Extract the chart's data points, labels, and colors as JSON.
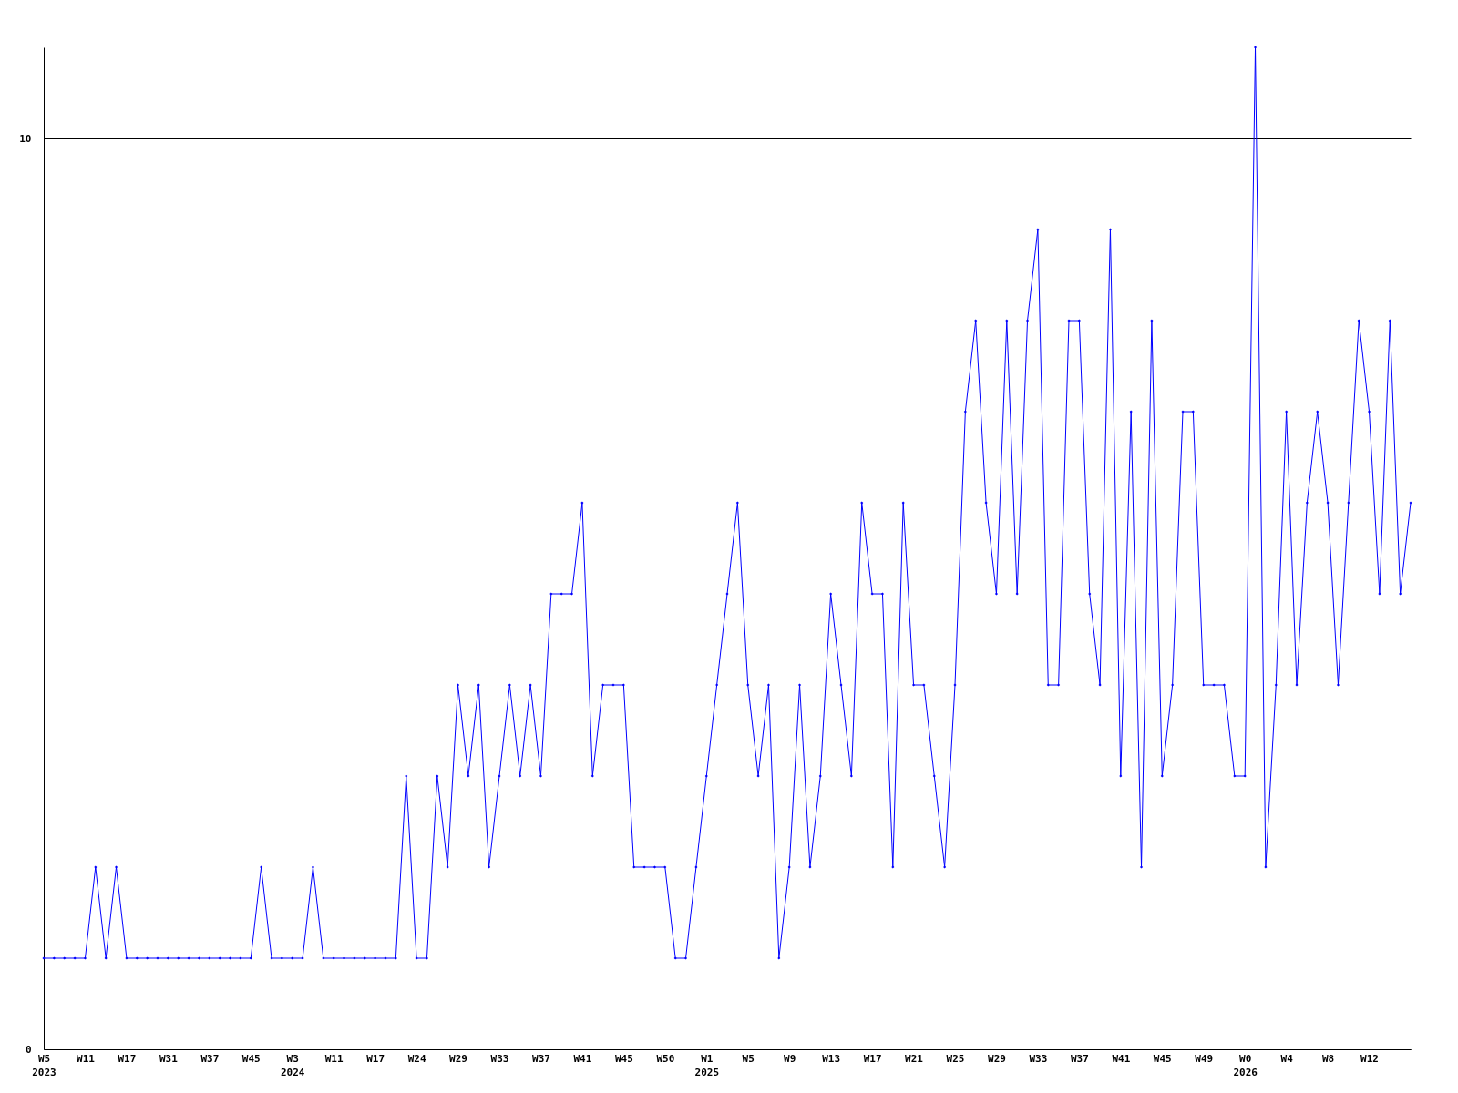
{
  "chart_data": {
    "type": "line",
    "categories": [
      "W5\n2023",
      null,
      null,
      null,
      "W11",
      null,
      null,
      null,
      "W17",
      null,
      null,
      null,
      "W31",
      null,
      null,
      null,
      "W37",
      null,
      null,
      null,
      "W45",
      null,
      null,
      null,
      "W3\n2024",
      null,
      null,
      null,
      "W11",
      null,
      null,
      null,
      "W17",
      null,
      null,
      null,
      "W24",
      null,
      null,
      null,
      "W29",
      null,
      null,
      null,
      "W33",
      null,
      null,
      null,
      "W37",
      null,
      null,
      null,
      "W41",
      null,
      null,
      null,
      "W45",
      null,
      null,
      null,
      "W50",
      null,
      null,
      null,
      "W1\n2025",
      null,
      null,
      null,
      "W5",
      null,
      null,
      null,
      "W9",
      null,
      null,
      null,
      "W13",
      null,
      null,
      null,
      "W17",
      null,
      null,
      null,
      "W21",
      null,
      null,
      null,
      "W25",
      null,
      null,
      null,
      "W29",
      null,
      null,
      null,
      "W33",
      null,
      null,
      null,
      "W37",
      null,
      null,
      null,
      "W41",
      null,
      null,
      null,
      "W45",
      null,
      null,
      null,
      "W49",
      null,
      null,
      null,
      "W0\n2026",
      null,
      null,
      null,
      "W4",
      null,
      null,
      null,
      "W8",
      null,
      null,
      null,
      "W12",
      null,
      null,
      null,
      null
    ],
    "series": [
      {
        "color": "#0000ff",
        "values": [
          1,
          1,
          1,
          1,
          1,
          2,
          1,
          2,
          1,
          1,
          1,
          1,
          1,
          1,
          1,
          1,
          1,
          1,
          1,
          1,
          1,
          2,
          1,
          1,
          1,
          1,
          2,
          1,
          1,
          1,
          1,
          1,
          1,
          1,
          1,
          3,
          1,
          1,
          3,
          2,
          4,
          3,
          4,
          2,
          3,
          4,
          3,
          4,
          3,
          5,
          5,
          5,
          6,
          3,
          4,
          4,
          4,
          2,
          2,
          2,
          2,
          1,
          1,
          2,
          3,
          4,
          5,
          6,
          4,
          3,
          4,
          1,
          2,
          4,
          2,
          3,
          5,
          4,
          3,
          6,
          5,
          5,
          2,
          6,
          4,
          4,
          3,
          2,
          4,
          7,
          8,
          6,
          5,
          8,
          5,
          8,
          9,
          4,
          4,
          8,
          8,
          5,
          4,
          9,
          3,
          7,
          2,
          8,
          3,
          4,
          7,
          7,
          4,
          4,
          4,
          3,
          3,
          11,
          2,
          4,
          7,
          4,
          6,
          7,
          6,
          4,
          6,
          8,
          7,
          5,
          8,
          5,
          6
        ]
      }
    ],
    "ylim": [
      0,
      11
    ],
    "yticks": [
      0,
      10
    ],
    "grid": "y",
    "marker": "diamond",
    "line_style": "solid"
  }
}
